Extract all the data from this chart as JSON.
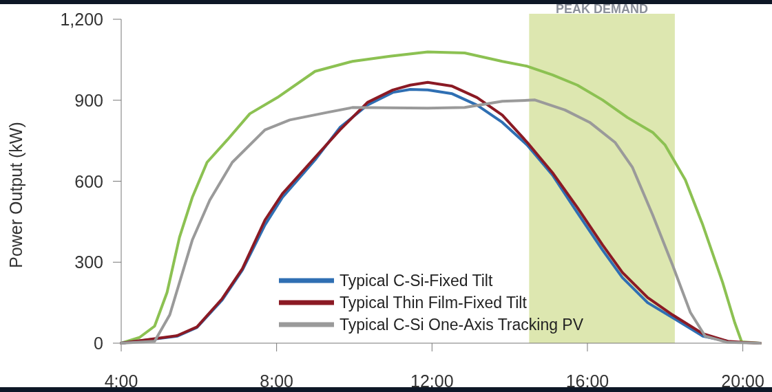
{
  "chart_data": {
    "type": "line",
    "ylabel": "Power Output (kW)",
    "xlim": [
      4,
      20.45
    ],
    "xticks": [
      {
        "value": 4,
        "label": "4:00"
      },
      {
        "value": 8,
        "label": "8:00"
      },
      {
        "value": 12,
        "label": "12:00"
      },
      {
        "value": 16,
        "label": "16:00"
      },
      {
        "value": 20,
        "label": "20:00"
      }
    ],
    "ylim": [
      0,
      1200
    ],
    "yticks": [
      0,
      300,
      600,
      900,
      {
        "value": 1200,
        "label": "1,200"
      }
    ],
    "grid": false,
    "legend": "bottom",
    "line_style": "solid",
    "marker": "none",
    "bands": [
      {
        "axis": "x",
        "from": 14.5,
        "to": 18.25,
        "label": "PEAK DEMAND",
        "color": "#dde7b0"
      }
    ],
    "series": [
      {
        "color": "#8cc152",
        "x": [
          4,
          4.47,
          4.86,
          5.18,
          5.5,
          5.83,
          6.21,
          6.73,
          7.31,
          8.02,
          8.99,
          9.95,
          10.92,
          11.89,
          12.84,
          13.81,
          14.45,
          15.1,
          15.74,
          16.39,
          17.03,
          17.68,
          18,
          18.52,
          18.97,
          19.48,
          19.79,
          19.97,
          20.45
        ],
        "values": [
          0,
          21,
          63,
          188,
          392,
          540,
          670,
          753,
          850,
          910,
          1007,
          1044,
          1063,
          1079,
          1075,
          1044,
          1026,
          994,
          956,
          901,
          836,
          781,
          734,
          605,
          438,
          225,
          77,
          5,
          0
        ]
      },
      {
        "name": "Typical C-Si-Fixed Tilt",
        "color": "#2f6fb3",
        "x": [
          4,
          5.44,
          5.95,
          6.6,
          7.12,
          7.7,
          8.15,
          8.99,
          9.63,
          10.34,
          10.99,
          11.44,
          11.89,
          12.52,
          13.16,
          13.81,
          14.45,
          15.1,
          15.74,
          16.39,
          16.9,
          17.55,
          18.19,
          18.97,
          19.61
        ],
        "values": [
          0,
          26,
          58,
          160,
          271,
          438,
          540,
          679,
          799,
          882,
          929,
          940,
          938,
          924,
          882,
          818,
          734,
          623,
          484,
          345,
          243,
          150,
          95,
          26,
          7
        ]
      },
      {
        "name": "Typical Thin Film-Fixed Tilt",
        "color": "#8b1a24",
        "x": [
          4,
          5.44,
          5.95,
          6.6,
          7.12,
          7.7,
          8.15,
          8.99,
          9.63,
          10.34,
          10.99,
          11.44,
          11.89,
          12.52,
          13.16,
          13.81,
          14.45,
          15.1,
          15.74,
          16.39,
          16.9,
          17.55,
          18.19,
          18.97,
          19.61,
          20,
          20.45
        ],
        "values": [
          0,
          28,
          60,
          165,
          276,
          456,
          554,
          688,
          790,
          892,
          938,
          956,
          966,
          952,
          910,
          845,
          744,
          632,
          503,
          364,
          262,
          169,
          105,
          35,
          7,
          3,
          0
        ]
      },
      {
        "name": "Typical C-Si One-Axis Tracking PV",
        "color": "#9a9a9a",
        "x": [
          4,
          4.86,
          5.25,
          5.83,
          6.28,
          6.86,
          7.7,
          8.34,
          9.31,
          9.95,
          11.89,
          12.84,
          13.81,
          14.65,
          15.42,
          16.06,
          16.71,
          17.16,
          17.68,
          18.19,
          18.65,
          19.03,
          19.61,
          20.45
        ],
        "values": [
          0,
          7,
          105,
          382,
          530,
          670,
          790,
          827,
          855,
          873,
          871,
          873,
          896,
          901,
          864,
          818,
          744,
          651,
          475,
          290,
          114,
          26,
          3,
          0
        ]
      }
    ]
  }
}
